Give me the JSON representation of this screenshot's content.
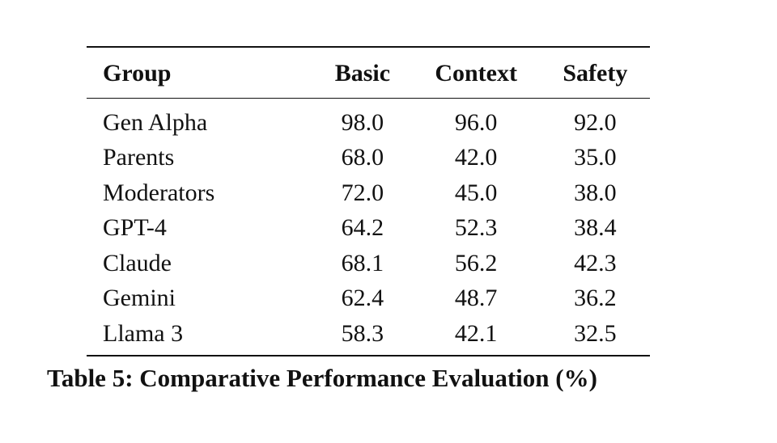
{
  "table": {
    "headers": [
      "Group",
      "Basic",
      "Context",
      "Safety"
    ],
    "rows": [
      [
        "Gen Alpha",
        "98.0",
        "96.0",
        "92.0"
      ],
      [
        "Parents",
        "68.0",
        "42.0",
        "35.0"
      ],
      [
        "Moderators",
        "72.0",
        "45.0",
        "38.0"
      ],
      [
        "GPT-4",
        "64.2",
        "52.3",
        "38.4"
      ],
      [
        "Claude",
        "68.1",
        "56.2",
        "42.3"
      ],
      [
        "Gemini",
        "62.4",
        "48.7",
        "36.2"
      ],
      [
        "Llama 3",
        "58.3",
        "42.1",
        "32.5"
      ]
    ]
  },
  "caption": "Table 5: Comparative Performance Evaluation (%)"
}
